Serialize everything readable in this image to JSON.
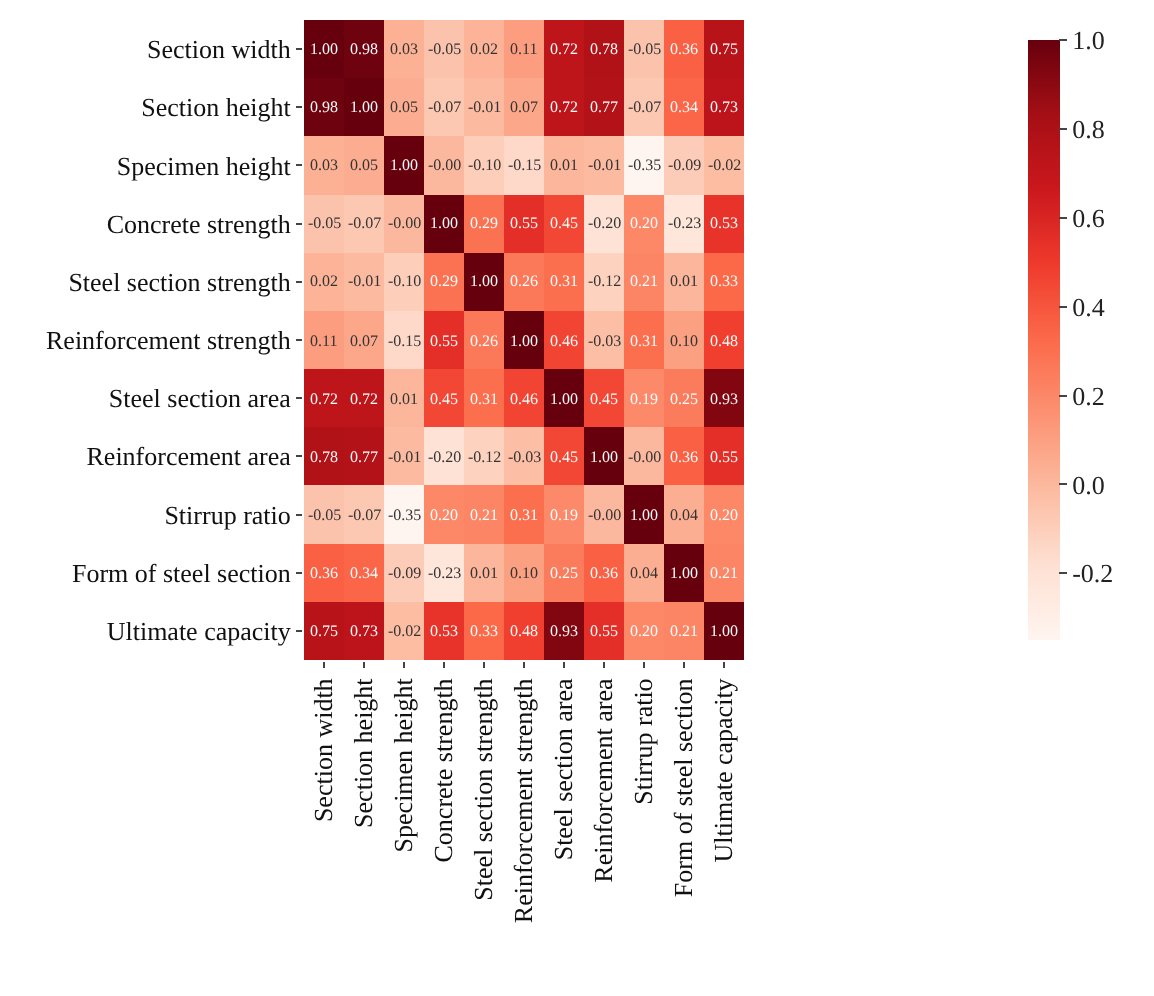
{
  "chart_data": {
    "type": "heatmap",
    "categories": [
      "Section width",
      "Section height",
      "Specimen height",
      "Concrete strength",
      "Steel section strength",
      "Reinforcement strength",
      "Steel section area",
      "Reinforcement area",
      "Stirrup ratio",
      "Form of steel section",
      "Ultimate capacity"
    ],
    "y_categories": [
      "Section width",
      "Section height",
      "Specimen height",
      "Concrete strength",
      "Steel section strength",
      "Reinforcement strength",
      "Steel section area",
      "Reinforcement area",
      "Stirrup ratio",
      "Form of steel section",
      "Ultimate capacity"
    ],
    "cells": [
      [
        1.0,
        0.98,
        0.03,
        -0.05,
        0.02,
        0.11,
        0.72,
        0.78,
        -0.05,
        0.36,
        0.75
      ],
      [
        0.98,
        1.0,
        0.05,
        -0.07,
        -0.01,
        0.07,
        0.72,
        0.77,
        -0.07,
        0.34,
        0.73
      ],
      [
        0.03,
        0.05,
        1.0,
        0,
        -0.1,
        -0.15,
        0.01,
        -0.01,
        -0.35,
        -0.09,
        -0.02
      ],
      [
        -0.05,
        -0.07,
        0,
        1.0,
        0.29,
        0.55,
        0.45,
        -0.2,
        0.2,
        -0.23,
        0.53
      ],
      [
        0.02,
        -0.01,
        -0.1,
        0.29,
        1.0,
        0.26,
        0.31,
        -0.12,
        0.21,
        0.01,
        0.33
      ],
      [
        0.11,
        0.07,
        -0.15,
        0.55,
        0.26,
        1.0,
        0.46,
        -0.03,
        0.31,
        0.1,
        0.48
      ],
      [
        0.72,
        0.72,
        0.01,
        0.45,
        0.31,
        0.46,
        1.0,
        0.45,
        0.19,
        0.25,
        0.93
      ],
      [
        0.78,
        0.77,
        -0.01,
        -0.2,
        -0.12,
        -0.03,
        0.45,
        1.0,
        0,
        0.36,
        0.55
      ],
      [
        -0.05,
        -0.07,
        -0.35,
        0.2,
        0.21,
        0.31,
        0.19,
        0,
        1.0,
        0.04,
        0.2
      ],
      [
        0.36,
        0.34,
        -0.09,
        -0.23,
        0.01,
        0.1,
        0.25,
        0.36,
        0.04,
        1.0,
        0.21
      ],
      [
        0.75,
        0.73,
        -0.02,
        0.53,
        0.33,
        0.48,
        0.93,
        0.55,
        0.2,
        0.21,
        1.0
      ]
    ],
    "cell_labels": [
      [
        "1.00",
        "0.98",
        "0.03",
        "-0.05",
        "0.02",
        "0.11",
        "0.72",
        "0.78",
        "-0.05",
        "0.36",
        "0.75"
      ],
      [
        "0.98",
        "1.00",
        "0.05",
        "-0.07",
        "-0.01",
        "0.07",
        "0.72",
        "0.77",
        "-0.07",
        "0.34",
        "0.73"
      ],
      [
        "0.03",
        "0.05",
        "1.00",
        "-0.00",
        "-0.10",
        "-0.15",
        "0.01",
        "-0.01",
        "-0.35",
        "-0.09",
        "-0.02"
      ],
      [
        "-0.05",
        "-0.07",
        "-0.00",
        "1.00",
        "0.29",
        "0.55",
        "0.45",
        "-0.20",
        "0.20",
        "-0.23",
        "0.53"
      ],
      [
        "0.02",
        "-0.01",
        "-0.10",
        "0.29",
        "1.00",
        "0.26",
        "0.31",
        "-0.12",
        "0.21",
        "0.01",
        "0.33"
      ],
      [
        "0.11",
        "0.07",
        "-0.15",
        "0.55",
        "0.26",
        "1.00",
        "0.46",
        "-0.03",
        "0.31",
        "0.10",
        "0.48"
      ],
      [
        "0.72",
        "0.72",
        "0.01",
        "0.45",
        "0.31",
        "0.46",
        "1.00",
        "0.45",
        "0.19",
        "0.25",
        "0.93"
      ],
      [
        "0.78",
        "0.77",
        "-0.01",
        "-0.20",
        "-0.12",
        "-0.03",
        "0.45",
        "1.00",
        "-0.00",
        "0.36",
        "0.55"
      ],
      [
        "-0.05",
        "-0.07",
        "-0.35",
        "0.20",
        "0.21",
        "0.31",
        "0.19",
        "-0.00",
        "1.00",
        "0.04",
        "0.20"
      ],
      [
        "0.36",
        "0.34",
        "-0.09",
        "-0.23",
        "0.01",
        "0.10",
        "0.25",
        "0.36",
        "0.04",
        "1.00",
        "0.21"
      ],
      [
        "0.75",
        "0.73",
        "-0.02",
        "0.53",
        "0.33",
        "0.48",
        "0.93",
        "0.55",
        "0.20",
        "0.21",
        "1.00"
      ]
    ],
    "clim": [
      -0.35,
      1.0
    ],
    "cticks": [
      {
        "value": -0.2,
        "label": "-0.2"
      },
      {
        "value": 0,
        "label": "0.0"
      },
      0.2,
      0.4,
      0.6,
      0.8,
      {
        "value": 1,
        "label": "1.0"
      }
    ]
  }
}
